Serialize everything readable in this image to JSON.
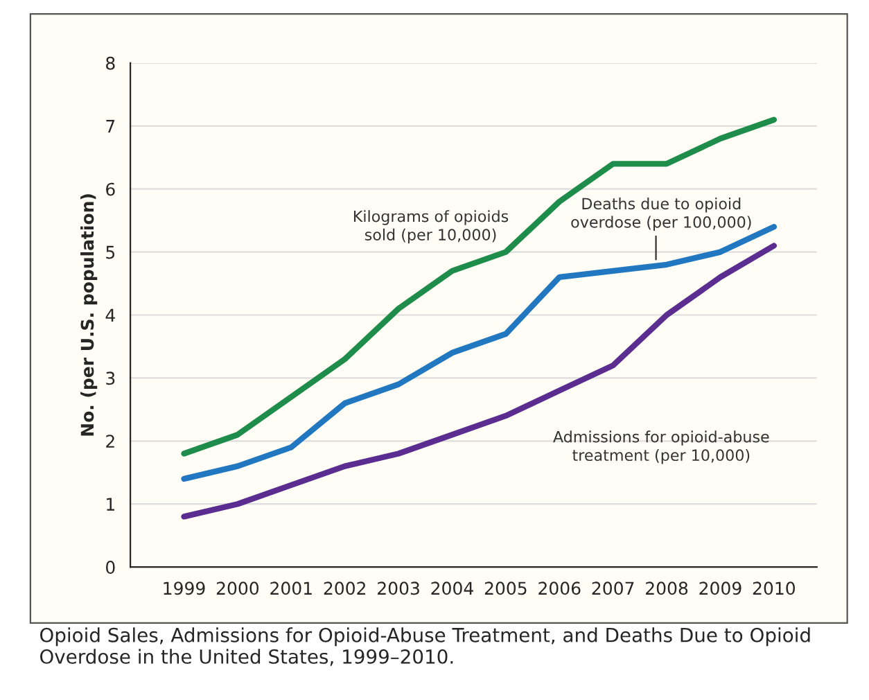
{
  "chart_data": {
    "type": "line",
    "title": "Opioid Sales, Admissions for Opioid-Abuse Treatment, and Deaths Due to Opioid Overdose in the United States, 1999–2010.",
    "ylabel": "No. (per U.S. population)",
    "categories": [
      "1999",
      "2000",
      "2001",
      "2002",
      "2003",
      "2004",
      "2005",
      "2006",
      "2007",
      "2008",
      "2009",
      "2010"
    ],
    "series": [
      {
        "name": "Kilograms of opioids\nsold (per 10,000)",
        "color": "#1e8c4a",
        "values": [
          1.8,
          2.1,
          2.7,
          3.3,
          4.1,
          4.7,
          5.0,
          5.8,
          6.4,
          6.4,
          6.8,
          7.1
        ]
      },
      {
        "name": "Deaths due to opioid\noverdose (per 100,000)",
        "color": "#2178c0",
        "values": [
          1.4,
          1.6,
          1.9,
          2.6,
          2.9,
          3.4,
          3.7,
          4.6,
          4.7,
          4.8,
          5.0,
          5.4
        ]
      },
      {
        "name": "Admissions for opioid-abuse\ntreatment (per 10,000)",
        "color": "#5b2d91",
        "values": [
          0.8,
          1.0,
          1.3,
          1.6,
          1.8,
          2.1,
          2.4,
          2.8,
          3.2,
          4.0,
          4.6,
          5.1
        ]
      }
    ],
    "ylim": [
      0,
      8
    ],
    "yticks": [
      0,
      1,
      2,
      3,
      4,
      5,
      6,
      7,
      8
    ],
    "grid": "y",
    "legend": false,
    "marker": "none",
    "line_style": "solid"
  }
}
